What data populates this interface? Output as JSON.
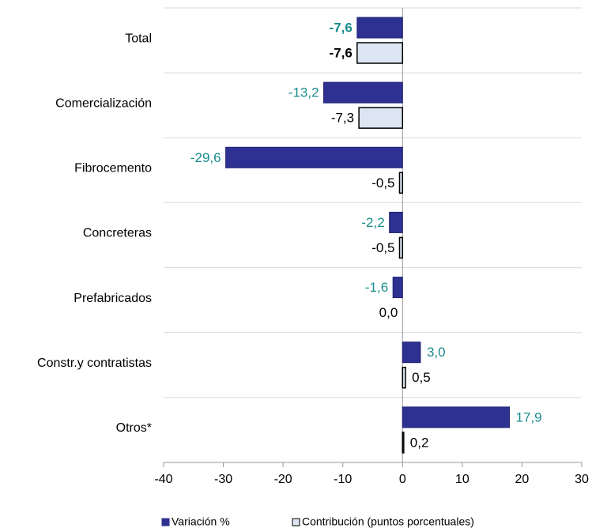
{
  "chart_data": {
    "type": "bar",
    "orientation": "horizontal",
    "categories": [
      "Total",
      "Comercialización",
      "Fibrocemento",
      "Concreteras",
      "Prefabricados",
      "Constr.y contratistas",
      "Otros*"
    ],
    "series": [
      {
        "name": "Variación %",
        "color": "#2e3192",
        "label_color": "#1a8c8c",
        "values": [
          -7.6,
          -13.2,
          -29.6,
          -2.2,
          -1.6,
          3.0,
          17.9
        ],
        "value_labels": [
          "-7,6",
          "-13,2",
          "-29,6",
          "-2,2",
          "-1,6",
          "3,0",
          "17,9"
        ]
      },
      {
        "name": "Contribución (puntos porcentuales)",
        "color": "#dce6f2",
        "label_color": "#000000",
        "values": [
          -7.6,
          -7.3,
          -0.5,
          -0.5,
          0.0,
          0.5,
          0.2
        ],
        "value_labels": [
          "-7,6",
          "-7,3",
          "-0,5",
          "-0,5",
          "0,0",
          "0,5",
          "0,2"
        ]
      }
    ],
    "xlim": [
      -40,
      30
    ],
    "xticks": [
      -40,
      -30,
      -20,
      -10,
      0,
      10,
      20,
      30
    ],
    "legend": "bottom"
  }
}
